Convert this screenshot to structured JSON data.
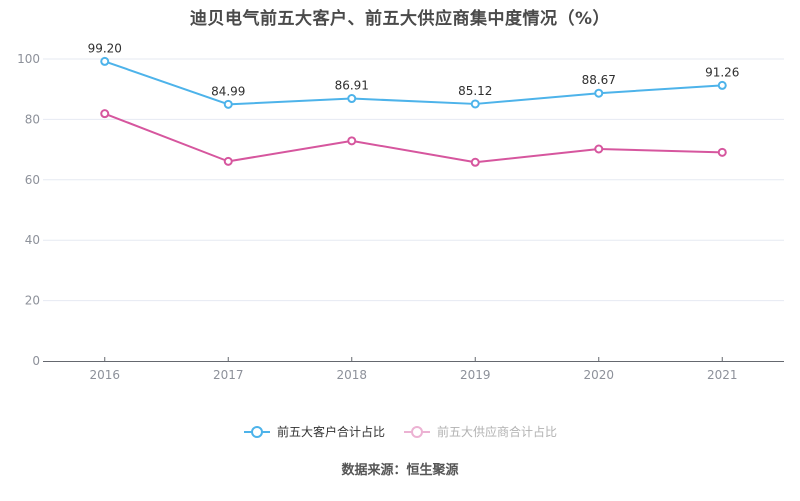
{
  "title": "迪贝电气前五大客户、前五大供应商集中度情况（%）",
  "source": "数据来源：恒生聚源",
  "colors": {
    "background": "#ffffff",
    "grid": "#e6eaf2",
    "axis": "#65686f",
    "axis_text": "#8d919a",
    "title_text": "#4a4a4a",
    "data_label": "#2f2f2f",
    "legend_text": "#333333",
    "legend_text_faded": "#b2b2b2",
    "customer_series": "#4db3ea",
    "supplier_series": "#d6569e"
  },
  "chart_data": {
    "type": "line",
    "title": "迪贝电气前五大客户、前五大供应商集中度情况（%）",
    "xlabel": "",
    "ylabel": "",
    "categories": [
      "2016",
      "2017",
      "2018",
      "2019",
      "2020",
      "2021"
    ],
    "ylim": [
      0,
      100
    ],
    "yticks": [
      0,
      20,
      40,
      60,
      80,
      100
    ],
    "grid": true,
    "legend_position": "bottom",
    "series": [
      {
        "name": "前五大客户合计占比",
        "color": "#4db3ea",
        "values": [
          99.2,
          84.99,
          86.91,
          85.12,
          88.67,
          91.26
        ],
        "labels": [
          "99.20",
          "84.99",
          "86.91",
          "85.12",
          "88.67",
          "91.26"
        ],
        "show_labels": true,
        "legend_faded": false
      },
      {
        "name": "前五大供应商合计占比",
        "color": "#d6569e",
        "values": [
          81.9,
          66.1,
          72.9,
          65.8,
          70.2,
          69.1
        ],
        "labels": [],
        "show_labels": false,
        "legend_faded": true
      }
    ]
  }
}
